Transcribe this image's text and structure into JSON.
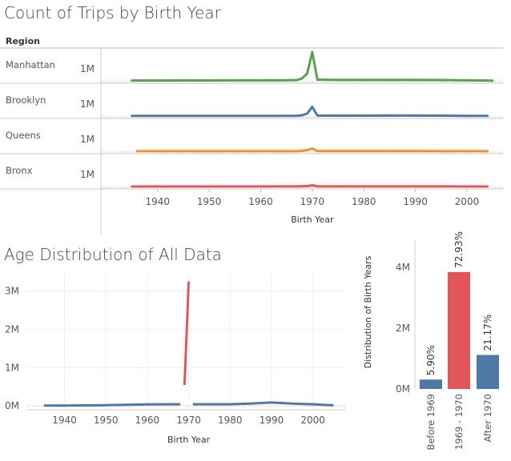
{
  "colors": {
    "green": "#59a14f",
    "blue": "#4e79a7",
    "orange": "#f28e2b",
    "red": "#e15759",
    "axis": "#cfcfcf",
    "grid": "#efefef",
    "label": "#555555"
  },
  "chart_data": [
    {
      "type": "line",
      "title": "Count of Trips by Birth Year",
      "row_header": "Region",
      "xlabel": "Birth Year",
      "x_ticks": [
        1940,
        1950,
        1960,
        1970,
        1980,
        1990,
        2000
      ],
      "row_tick_label": "1M",
      "xlim": [
        1929,
        2007
      ],
      "ylim_per_row": [
        0,
        1600000
      ],
      "series": [
        {
          "name": "Manhattan",
          "color_key": "green",
          "x": [
            1935,
            1940,
            1945,
            1950,
            1955,
            1960,
            1965,
            1967,
            1968,
            1969,
            1970,
            1971,
            1975,
            1980,
            1985,
            1990,
            1995,
            2000,
            2005
          ],
          "y": [
            15000,
            16000,
            18000,
            20000,
            22000,
            25000,
            30000,
            40000,
            120000,
            350000,
            1420000,
            60000,
            45000,
            45000,
            45000,
            45000,
            40000,
            25000,
            12000
          ]
        },
        {
          "name": "Brooklyn",
          "color_key": "blue",
          "x": [
            1935,
            1940,
            1945,
            1950,
            1955,
            1960,
            1965,
            1967,
            1968,
            1969,
            1970,
            1971,
            1975,
            1980,
            1985,
            1990,
            1995,
            2000,
            2004
          ],
          "y": [
            8000,
            8000,
            9000,
            10000,
            11000,
            12000,
            13000,
            14000,
            40000,
            120000,
            450000,
            25000,
            20000,
            20000,
            22000,
            25000,
            20000,
            12000,
            6000
          ]
        },
        {
          "name": "Queens",
          "color_key": "orange",
          "x": [
            1936,
            1940,
            1945,
            1950,
            1955,
            1960,
            1965,
            1967,
            1968,
            1969,
            1970,
            1971,
            1975,
            1980,
            1985,
            1990,
            1995,
            2000,
            2004
          ],
          "y": [
            2000,
            2000,
            2000,
            3000,
            3000,
            3000,
            4000,
            4000,
            20000,
            60000,
            130000,
            8000,
            6000,
            6000,
            6000,
            6000,
            5000,
            3000,
            2000
          ]
        },
        {
          "name": "Bronx",
          "color_key": "red",
          "x": [
            1935,
            1940,
            1945,
            1950,
            1955,
            1960,
            1965,
            1967,
            1968,
            1969,
            1970,
            1971,
            1975,
            1980,
            1985,
            1990,
            1995,
            2000,
            2004
          ],
          "y": [
            1000,
            1000,
            1000,
            1000,
            1000,
            1000,
            2000,
            2000,
            10000,
            20000,
            60000,
            3000,
            3000,
            3000,
            3000,
            3000,
            2000,
            1000,
            1000
          ]
        }
      ]
    },
    {
      "type": "line",
      "title": "Age Distribution of All Data",
      "xlabel": "Birth Year",
      "x_ticks": [
        1940,
        1950,
        1960,
        1970,
        1980,
        1990,
        2000
      ],
      "y_ticks": [
        0,
        1000000,
        2000000,
        3000000
      ],
      "y_tick_labels": [
        "0M",
        "1M",
        "2M",
        "3M"
      ],
      "xlim": [
        1931,
        2008
      ],
      "ylim": [
        -100000,
        3450000
      ],
      "grid": true,
      "series": [
        {
          "name": "Before 1969",
          "color_key": "blue",
          "x": [
            1935,
            1940,
            1945,
            1950,
            1955,
            1960,
            1965,
            1968
          ],
          "y": [
            10000,
            10000,
            15000,
            20000,
            30000,
            40000,
            45000,
            45000
          ]
        },
        {
          "name": "1969 - 1970",
          "color_key": "red",
          "x": [
            1969,
            1970
          ],
          "y": [
            550000,
            3250000
          ]
        },
        {
          "name": "After 1970",
          "color_key": "blue",
          "x": [
            1971,
            1975,
            1980,
            1985,
            1990,
            1995,
            2000,
            2005
          ],
          "y": [
            45000,
            45000,
            45000,
            60000,
            90000,
            60000,
            45000,
            15000
          ]
        }
      ]
    },
    {
      "type": "bar",
      "ylabel": "Distribution of Birth Years",
      "categories": [
        "Before 1969",
        "1969 - 1970",
        "After 1970"
      ],
      "values": [
        310000,
        3850000,
        1120000
      ],
      "labels": [
        "5.90%",
        "72.93%",
        "21.17%"
      ],
      "color_keys": [
        "blue",
        "red",
        "blue"
      ],
      "y_ticks": [
        0,
        2000000,
        4000000
      ],
      "y_tick_labels": [
        "0M",
        "2M",
        "4M"
      ],
      "ylim": [
        0,
        4900000
      ]
    }
  ]
}
